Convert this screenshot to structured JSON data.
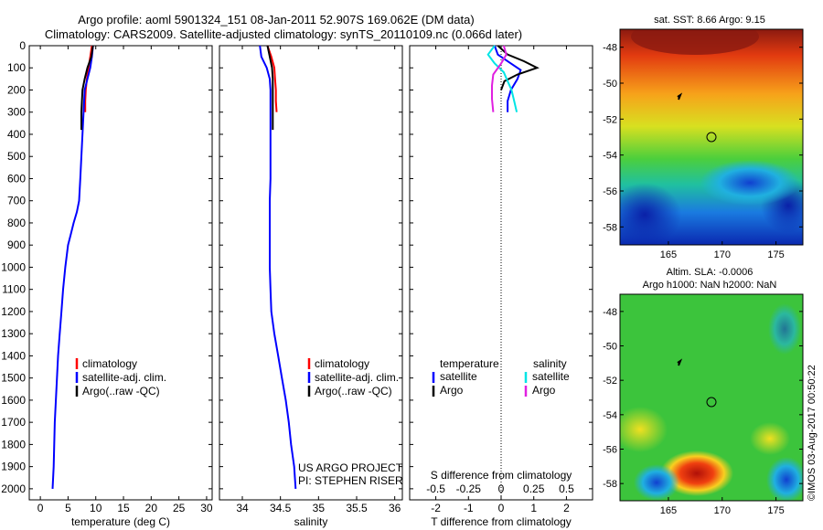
{
  "header": {
    "title_line1": "Argo profile: aoml 5901324_151 08-Jan-2011 52.907S 169.062E (DM data)",
    "title_line2": "Climatology: CARS2009. Satellite-adjusted climatology: synTS_20110109.nc (0.066d later)"
  },
  "colors": {
    "climatology": "#ff0000",
    "satellite": "#0000ff",
    "argo": "#000000",
    "sal_satellite": "#00e5e5",
    "sal_argo": "#e020e0"
  },
  "legend": {
    "climatology": "climatology",
    "satellite_adj": "satellite-adj. clim.",
    "argo_raw": "Argo(..raw -QC)"
  },
  "diff_legend": {
    "temperature": "temperature",
    "salinity": "salinity",
    "satellite": "satellite",
    "argo": "Argo"
  },
  "project": {
    "line1": "US ARGO PROJECT",
    "line2": "PI: STEPHEN RISER"
  },
  "map1": {
    "title": "sat. SST: 8.66 Argo: 9.15"
  },
  "map2": {
    "title_line1": "Altim. SLA: -0.0006",
    "title_line2": "Argo h1000: NaN h2000: NaN"
  },
  "watermark": "©IMOS 03-Aug-2017 00:50:22",
  "chart_data": [
    {
      "type": "line",
      "name": "temperature-profile",
      "xlabel": "temperature (deg C)",
      "xlim": [
        -2,
        31
      ],
      "ylim": [
        0,
        2050
      ],
      "xticks": [
        0,
        5,
        10,
        15,
        20,
        25,
        30
      ],
      "yticks": [
        0,
        100,
        200,
        300,
        400,
        500,
        600,
        700,
        800,
        900,
        1000,
        1100,
        1200,
        1300,
        1400,
        1500,
        1600,
        1700,
        1800,
        1900,
        2000
      ],
      "series": [
        {
          "name": "climatology",
          "x": [
            9.3,
            9.0,
            8.7,
            8.4,
            8.2,
            8.1,
            8.1
          ],
          "y": [
            0,
            50,
            100,
            150,
            200,
            250,
            300
          ]
        },
        {
          "name": "satellite-adj. clim.",
          "x": [
            9.5,
            9.3,
            9.0,
            8.5,
            8.0,
            7.8,
            7.6,
            7.4,
            7.2,
            7.0,
            6.6,
            6.0,
            5.5,
            5.0,
            4.5,
            4.1,
            3.8,
            3.5,
            3.2,
            3.0,
            2.8,
            2.6,
            2.5,
            2.4,
            2.3,
            2.2
          ],
          "y": [
            0,
            50,
            100,
            150,
            200,
            300,
            400,
            500,
            600,
            700,
            750,
            800,
            850,
            900,
            1000,
            1100,
            1200,
            1300,
            1400,
            1500,
            1600,
            1700,
            1800,
            1900,
            1950,
            2000
          ]
        },
        {
          "name": "Argo(..raw -QC)",
          "x": [
            9.5,
            9.2,
            8.5,
            8.0,
            7.6,
            7.5,
            7.4,
            7.4
          ],
          "y": [
            0,
            50,
            100,
            150,
            200,
            250,
            300,
            380
          ]
        }
      ]
    },
    {
      "type": "line",
      "name": "salinity-profile",
      "xlabel": "salinity",
      "xlim": [
        33.7,
        36.1
      ],
      "ylim": [
        0,
        2050
      ],
      "xticks": [
        34,
        34.5,
        35,
        35.5,
        36
      ],
      "series": [
        {
          "name": "climatology",
          "x": [
            34.33,
            34.38,
            34.42,
            34.43,
            34.44,
            34.44,
            34.45
          ],
          "y": [
            0,
            50,
            100,
            150,
            200,
            250,
            300
          ]
        },
        {
          "name": "satellite-adj. clim.",
          "x": [
            34.23,
            34.25,
            34.32,
            34.36,
            34.37,
            34.37,
            34.37,
            34.37,
            34.37,
            34.36,
            34.36,
            34.36,
            34.36,
            34.37,
            34.38,
            34.42,
            34.47,
            34.52,
            34.57,
            34.61,
            34.64,
            34.66,
            34.68,
            34.69,
            34.7
          ],
          "y": [
            0,
            50,
            100,
            150,
            200,
            300,
            400,
            500,
            600,
            700,
            800,
            900,
            1000,
            1100,
            1200,
            1300,
            1400,
            1500,
            1600,
            1700,
            1800,
            1850,
            1900,
            1950,
            2000
          ]
        },
        {
          "name": "Argo(..raw -QC)",
          "x": [
            34.33,
            34.36,
            34.39,
            34.4,
            34.4,
            34.4,
            34.4
          ],
          "y": [
            0,
            50,
            100,
            150,
            200,
            300,
            380
          ]
        }
      ]
    },
    {
      "type": "line",
      "name": "difference-profile",
      "xlabel": "T difference from climatology",
      "xlabel_top": "S difference from climatology",
      "xlim": [
        -2.8,
        2.8
      ],
      "ylim": [
        0,
        2050
      ],
      "xticks": [
        -2,
        -1,
        0,
        1,
        2
      ],
      "xticks_s": [
        -0.5,
        -0.25,
        0,
        0.25,
        0.5
      ],
      "xticklabels_s": [
        "-0.5",
        "-0.25",
        "0",
        "0.25",
        "0.5"
      ],
      "series": [
        {
          "name": "temperature satellite",
          "x": [
            -0.2,
            -0.1,
            0.3,
            0.6,
            0.5,
            0.3,
            0.2,
            0.2
          ],
          "y": [
            0,
            40,
            80,
            110,
            150,
            200,
            250,
            300
          ]
        },
        {
          "name": "temperature Argo",
          "x": [
            -0.1,
            0.2,
            0.7,
            1.1,
            0.5,
            0.1,
            0.0
          ],
          "y": [
            0,
            40,
            70,
            100,
            130,
            160,
            200
          ]
        },
        {
          "name": "salinity satellite",
          "x": [
            -0.05,
            -0.1,
            -0.05,
            0.02,
            0.05,
            0.08,
            0.1,
            0.12
          ],
          "y": [
            0,
            40,
            80,
            120,
            160,
            200,
            250,
            300
          ]
        },
        {
          "name": "salinity Argo",
          "x": [
            0.02,
            0.04,
            0.0,
            -0.06,
            -0.07,
            -0.07,
            -0.06
          ],
          "y": [
            0,
            40,
            80,
            130,
            180,
            240,
            300
          ]
        }
      ]
    }
  ],
  "maps": {
    "yticks": [
      -48,
      -50,
      -52,
      -54,
      -56,
      -58
    ],
    "xticks": [
      165,
      170,
      175
    ],
    "xlim": [
      160.5,
      177.5
    ],
    "ylim": [
      -59,
      -47
    ]
  }
}
